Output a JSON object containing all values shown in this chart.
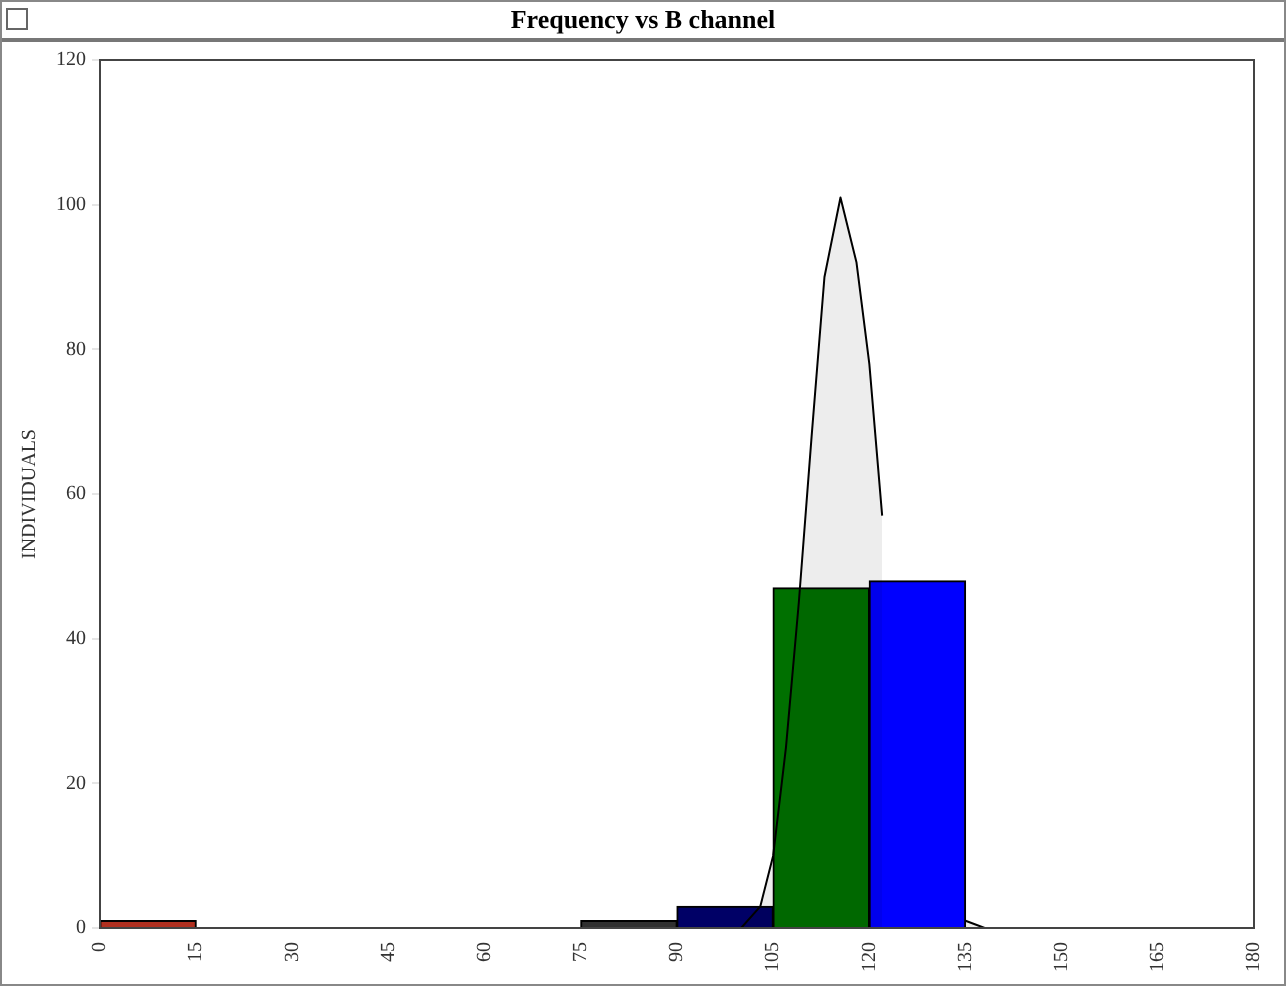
{
  "chart_data": {
    "type": "histogram",
    "title": "Frequency vs B channel",
    "ylabel": "INDIVIDUALS",
    "bins": [
      0,
      15,
      30,
      45,
      60,
      75,
      90,
      105,
      120,
      135,
      150,
      165,
      180
    ],
    "values": [
      1,
      0,
      0,
      0,
      0,
      1,
      3,
      47,
      48,
      0,
      0,
      0
    ],
    "colors": [
      "#b03020",
      "#808080",
      "#808080",
      "#808080",
      "#808080",
      "#303030",
      "#000066",
      "#007000",
      "#0000ff",
      "#808080",
      "#808080",
      "#808080"
    ],
    "series": [
      {
        "type": "area",
        "color": "#000000",
        "x": [
          100,
          103,
          105,
          107,
          109,
          111,
          113,
          115.5,
          118,
          120,
          122,
          124,
          126,
          128,
          131,
          135,
          138
        ],
        "values": [
          0,
          3,
          10,
          25,
          45,
          68,
          90,
          101,
          92,
          78,
          57,
          null,
          null,
          null,
          null,
          1,
          0
        ]
      }
    ],
    "xlim": [
      0,
      180
    ],
    "xticks": [
      0,
      15,
      30,
      45,
      60,
      75,
      90,
      105,
      120,
      135,
      150,
      165,
      180
    ],
    "ylim": [
      0,
      120
    ],
    "yticks": [
      0,
      20,
      40,
      60,
      80,
      100,
      120
    ],
    "grid": false
  }
}
